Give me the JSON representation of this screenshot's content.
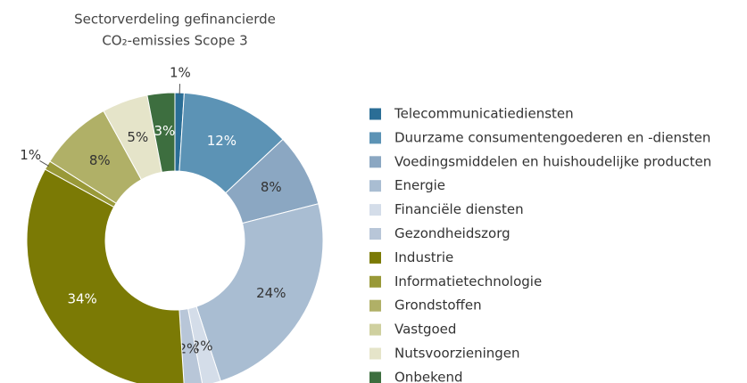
{
  "chart_data": {
    "type": "donut",
    "title": [
      "Sectorverdeling gefinancierde",
      "CO₂-emissies Scope 3"
    ],
    "categories": [
      "Telecommunicatiediensten",
      "Duurzame consumentengoederen en -diensten",
      "Voedingsmiddelen en huishoudelijke producten",
      "Energie",
      "Financiële diensten",
      "Gezondheidszorg",
      "Industrie",
      "Informatietechnologie",
      "Grondstoffen",
      "Vastgoed",
      "Nutsvoorzieningen",
      "Onbekend"
    ],
    "values": [
      1,
      12,
      8,
      24,
      2,
      2,
      34,
      1,
      8,
      0,
      5,
      3
    ],
    "value_labels": [
      "1%",
      "12%",
      "8%",
      "24%",
      "2%",
      "2%",
      "34%",
      "1%",
      "8%",
      null,
      "5%",
      "3%"
    ],
    "colors": [
      "#2b6e96",
      "#5c93b5",
      "#8ba7c2",
      "#a9bdd2",
      "#d4dde9",
      "#b8c6d8",
      "#7b7a05",
      "#999938",
      "#b0b067",
      "#cfd09f",
      "#e5e4c9",
      "#3d6e3f"
    ],
    "legend": "right"
  }
}
